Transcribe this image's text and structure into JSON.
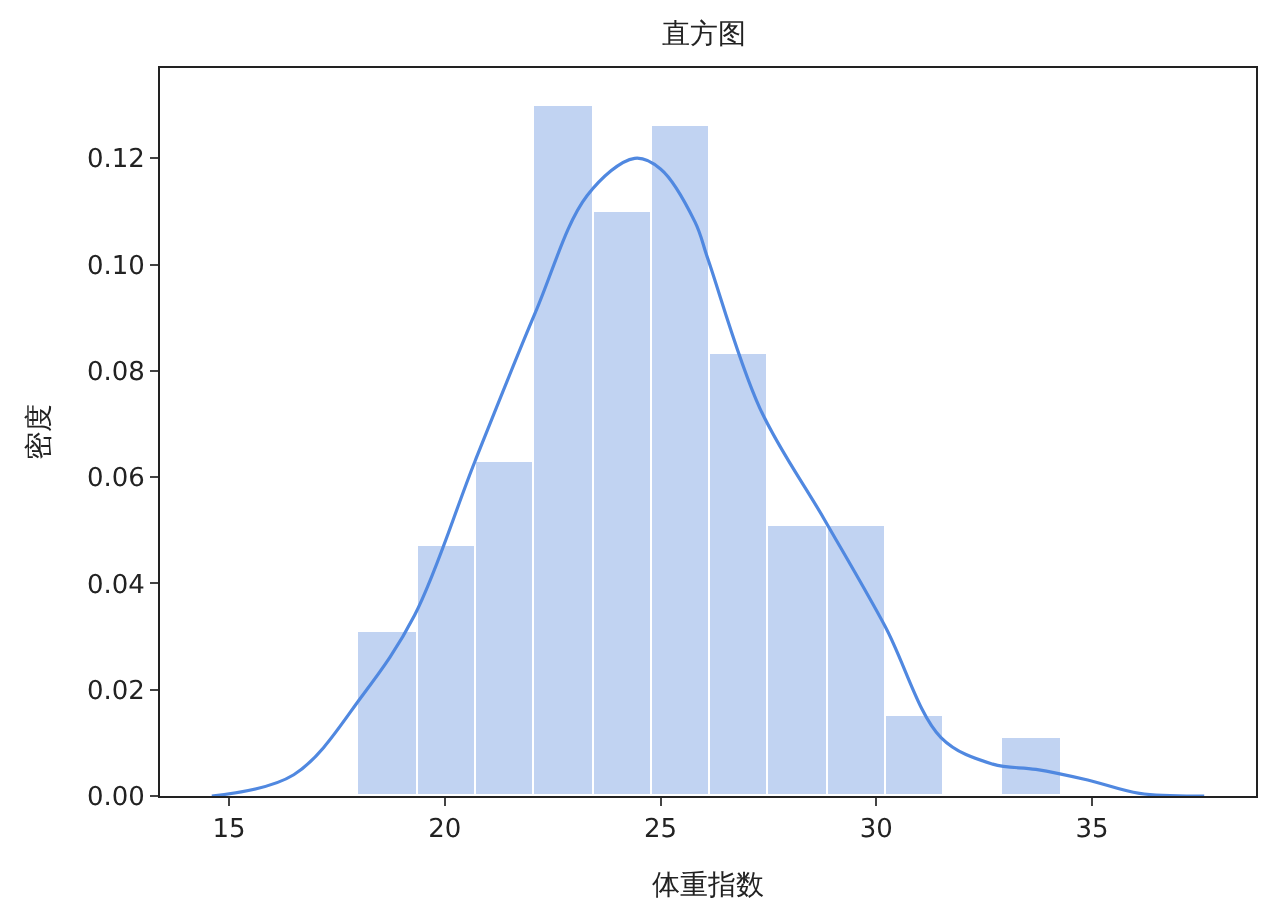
{
  "chart_data": {
    "type": "histogram",
    "title": "直方图",
    "xlabel": "体重指数",
    "ylabel": "密度",
    "bins": [
      18.01,
      19.37,
      20.72,
      22.08,
      23.44,
      24.79,
      26.15,
      27.51,
      28.86,
      30.22,
      31.58,
      32.93,
      34.29
    ],
    "series": [
      {
        "color": "#c1d3f2",
        "values": [
          0.031,
          0.047,
          0.063,
          0.13,
          0.11,
          0.126,
          0.083,
          0.051,
          0.051,
          0.015,
          0,
          0.011
        ]
      },
      {
        "type": "line",
        "color": "#5088e0",
        "x": [
          14.6,
          16.5,
          18.1,
          19.3,
          20.7,
          22.1,
          23.3,
          24.4,
          25.0,
          25.8,
          26.1,
          27.3,
          28.8,
          30.2,
          31.5,
          32.7,
          33.7,
          34.9,
          36.1,
          37.6
        ],
        "values": [
          0,
          0.004,
          0.019,
          0.034,
          0.063,
          0.091,
          0.113,
          0.12,
          0.118,
          0.108,
          0.101,
          0.073,
          0.052,
          0.032,
          0.011,
          0.006,
          0.005,
          0.003,
          0.0005,
          0
        ]
      }
    ],
    "xlim": [
      13.4,
      38.8
    ],
    "xticks": [
      15,
      20,
      25,
      30,
      35
    ],
    "ylim": [
      0,
      0.137
    ],
    "yticks": [
      {
        "value": 0,
        "label": "0.00"
      },
      0.02,
      0.04,
      0.06,
      0.08,
      {
        "value": 0.1,
        "label": "0.10"
      },
      0.12
    ]
  }
}
